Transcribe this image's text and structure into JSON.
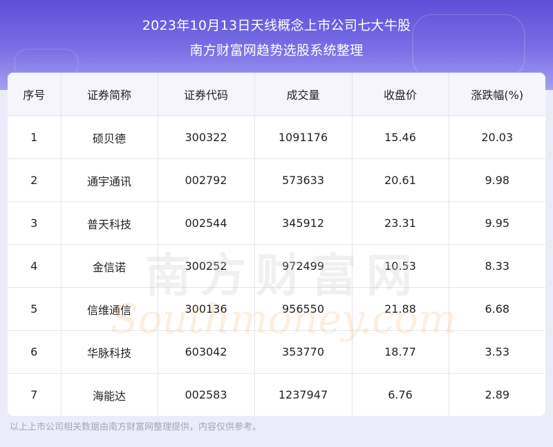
{
  "header": {
    "title_line1": "2023年10月13日天线概念上市公司七大牛股",
    "title_line2": "南方财富网趋势选股系统整理"
  },
  "table": {
    "columns": [
      "序号",
      "证券简称",
      "证券代码",
      "成交量",
      "收盘价",
      "涨跌幅(%)"
    ],
    "rows": [
      [
        "1",
        "硕贝德",
        "300322",
        "1091176",
        "15.46",
        "20.03"
      ],
      [
        "2",
        "通宇通讯",
        "002792",
        "573633",
        "20.61",
        "9.98"
      ],
      [
        "3",
        "普天科技",
        "002544",
        "345912",
        "23.31",
        "9.95"
      ],
      [
        "4",
        "金信诺",
        "300252",
        "972499",
        "10.53",
        "8.33"
      ],
      [
        "5",
        "信维通信",
        "300136",
        "956550",
        "21.88",
        "6.68"
      ],
      [
        "6",
        "华脉科技",
        "603042",
        "353770",
        "18.77",
        "3.53"
      ],
      [
        "7",
        "海能达",
        "002583",
        "1237947",
        "6.76",
        "2.89"
      ]
    ]
  },
  "watermark": {
    "cn": "南方财富网",
    "en": "Southmoney.com"
  },
  "footer": {
    "note": "以上上市公司相关数据由南方财富网整理提供，内容仅供参考。"
  },
  "colors": {
    "header_top": "#5b50d6",
    "header_bottom": "#a59ff0",
    "page_bg": "#ecebfa",
    "footer_text": "#a6a6b6"
  }
}
